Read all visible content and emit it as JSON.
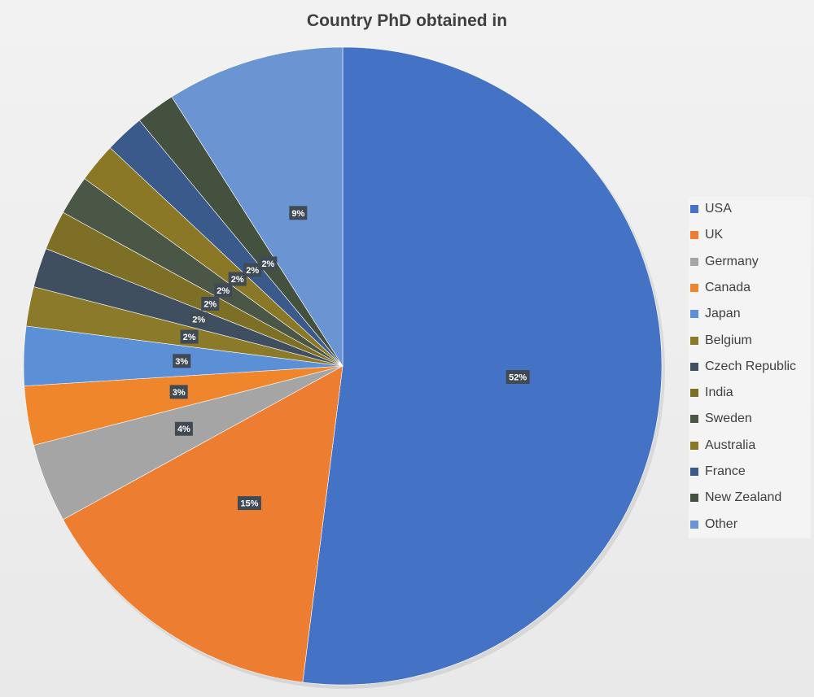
{
  "chart_data": {
    "type": "pie",
    "title": "Country PhD obtained in",
    "categories": [
      "USA",
      "UK",
      "Germany",
      "Canada",
      "Japan",
      "Belgium",
      "Czech Republic",
      "India",
      "Sweden",
      "Australia",
      "France",
      "New Zealand",
      "Other"
    ],
    "values": [
      52,
      15,
      4,
      3,
      3,
      2,
      2,
      2,
      2,
      2,
      2,
      2,
      9
    ],
    "data_labels": [
      "52%",
      "15%",
      "4%",
      "3%",
      "3%",
      "2%",
      "2%",
      "2%",
      "2%",
      "2%",
      "2%",
      "2%",
      "9%"
    ],
    "colors": [
      "#4472c4",
      "#ed7d31",
      "#a5a5a5",
      "#f0862c",
      "#5b8fd6",
      "#8c7a2b",
      "#3f4f60",
      "#7d6f25",
      "#4a5646",
      "#8a7826",
      "#3b5a8c",
      "#45513f",
      "#6a95d2"
    ],
    "legend_position": "right"
  }
}
